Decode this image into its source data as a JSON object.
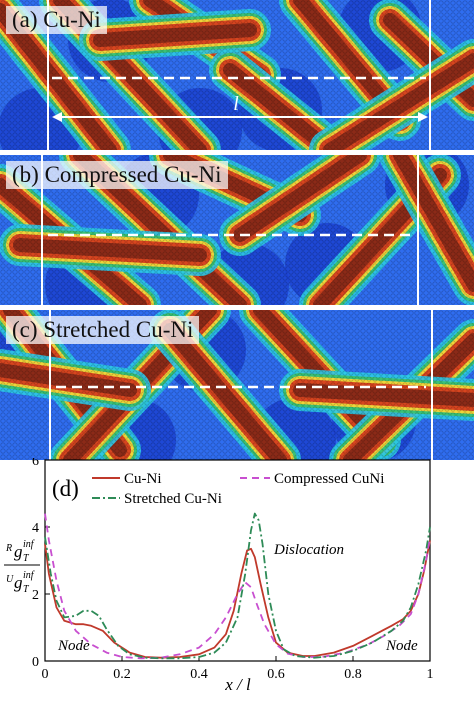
{
  "panels": [
    {
      "id": "a",
      "label": "(a) Cu-Ni",
      "length_label": "l"
    },
    {
      "id": "b",
      "label": "(b) Compressed Cu-Ni"
    },
    {
      "id": "c",
      "label": "(c) Stretched Cu-Ni"
    }
  ],
  "colors": {
    "deep_blue": "#1a3fd0",
    "blue": "#2f6df0",
    "cyan": "#2cc9e8",
    "green": "#3ac276",
    "yellow": "#f0d43a",
    "dislocation_red": "#8b2a18",
    "dislocation_edge": "#d8451f",
    "guide_white": "#ffffff"
  },
  "chart_data": {
    "type": "line",
    "panel_label": "(d)",
    "xlabel": "x / l",
    "ylabel_numerator": "R g_T^inf",
    "ylabel_denominator": "U g_T^inf",
    "xlim": [
      0,
      1
    ],
    "ylim": [
      0,
      6
    ],
    "xticks": [
      "0",
      "0.2",
      "0.4",
      "0.6",
      "0.8",
      "1"
    ],
    "yticks": [
      "0",
      "2",
      "4",
      "6"
    ],
    "legend": [
      "Cu-Ni",
      "Compressed CuNi",
      "Stretched Cu-Ni"
    ],
    "annotations": {
      "node_left": "Node",
      "node_right": "Node",
      "dislocation": "Dislocation"
    },
    "series": [
      {
        "name": "Cu-Ni",
        "color": "#c0392b",
        "dash": "solid",
        "x": [
          0,
          0.01,
          0.03,
          0.05,
          0.08,
          0.1,
          0.12,
          0.15,
          0.18,
          0.22,
          0.26,
          0.3,
          0.35,
          0.4,
          0.44,
          0.47,
          0.49,
          0.51,
          0.525,
          0.535,
          0.545,
          0.56,
          0.58,
          0.6,
          0.63,
          0.67,
          0.7,
          0.75,
          0.8,
          0.85,
          0.9,
          0.93,
          0.95,
          0.97,
          0.985,
          1
        ],
        "y": [
          3.5,
          2.6,
          1.6,
          1.2,
          1.1,
          1.1,
          1.05,
          0.9,
          0.55,
          0.25,
          0.12,
          0.1,
          0.12,
          0.2,
          0.4,
          0.8,
          1.5,
          2.6,
          3.3,
          3.35,
          3.1,
          2.3,
          1.3,
          0.55,
          0.25,
          0.15,
          0.15,
          0.25,
          0.45,
          0.75,
          1.05,
          1.25,
          1.5,
          2.0,
          2.7,
          3.6
        ]
      },
      {
        "name": "Compressed CuNi",
        "color": "#c84fd0",
        "dash": "7,5",
        "x": [
          0,
          0.01,
          0.03,
          0.05,
          0.08,
          0.12,
          0.16,
          0.2,
          0.25,
          0.3,
          0.35,
          0.4,
          0.44,
          0.47,
          0.5,
          0.52,
          0.535,
          0.55,
          0.57,
          0.6,
          0.63,
          0.67,
          0.72,
          0.78,
          0.84,
          0.88,
          0.92,
          0.95,
          0.97,
          0.99,
          1
        ],
        "y": [
          4.4,
          3.6,
          2.4,
          1.5,
          0.9,
          0.5,
          0.25,
          0.12,
          0.08,
          0.1,
          0.2,
          0.4,
          0.8,
          1.3,
          2.0,
          2.35,
          2.2,
          1.7,
          1.1,
          0.5,
          0.22,
          0.12,
          0.12,
          0.25,
          0.5,
          0.75,
          1.05,
          1.4,
          2.0,
          3.0,
          3.7
        ]
      },
      {
        "name": "Stretched Cu-Ni",
        "color": "#2e8b57",
        "dash": "8,3,2,3",
        "x": [
          0,
          0.015,
          0.03,
          0.05,
          0.08,
          0.1,
          0.12,
          0.14,
          0.16,
          0.19,
          0.22,
          0.26,
          0.3,
          0.35,
          0.4,
          0.44,
          0.47,
          0.5,
          0.52,
          0.535,
          0.545,
          0.555,
          0.565,
          0.58,
          0.6,
          0.62,
          0.65,
          0.7,
          0.75,
          0.8,
          0.85,
          0.9,
          0.93,
          0.95,
          0.97,
          0.99,
          1
        ],
        "y": [
          3.7,
          2.6,
          1.8,
          1.3,
          1.35,
          1.5,
          1.5,
          1.35,
          0.95,
          0.45,
          0.2,
          0.1,
          0.08,
          0.08,
          0.12,
          0.25,
          0.55,
          1.3,
          2.6,
          3.9,
          4.4,
          4.2,
          3.5,
          2.0,
          0.9,
          0.35,
          0.15,
          0.1,
          0.15,
          0.3,
          0.55,
          0.9,
          1.2,
          1.6,
          2.3,
          3.3,
          4.0
        ]
      }
    ]
  }
}
